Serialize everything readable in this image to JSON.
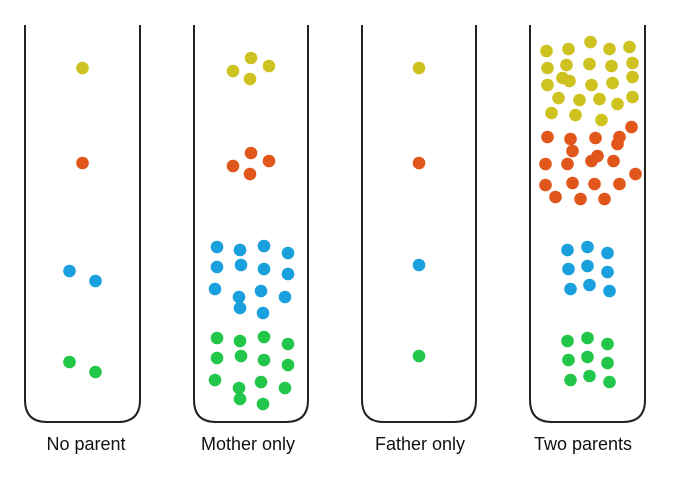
{
  "colors": {
    "yellow": "#cdc21f",
    "orange": "#e0561b",
    "blue": "#1aa0dc",
    "green": "#22c74a",
    "tube_stroke": "#222222"
  },
  "tubes": [
    {
      "label": "No parent",
      "counts": {
        "yellow": 1,
        "orange": 1,
        "blue": 2,
        "green": 2
      }
    },
    {
      "label": "Mother only",
      "counts": {
        "yellow": 4,
        "orange": 4,
        "blue": 14,
        "green": 14
      }
    },
    {
      "label": "Father only",
      "counts": {
        "yellow": 1,
        "orange": 1,
        "blue": 1,
        "green": 1
      }
    },
    {
      "label": "Two parents",
      "counts": {
        "yellow": 24,
        "orange": 20,
        "blue": 9,
        "green": 9
      }
    }
  ]
}
